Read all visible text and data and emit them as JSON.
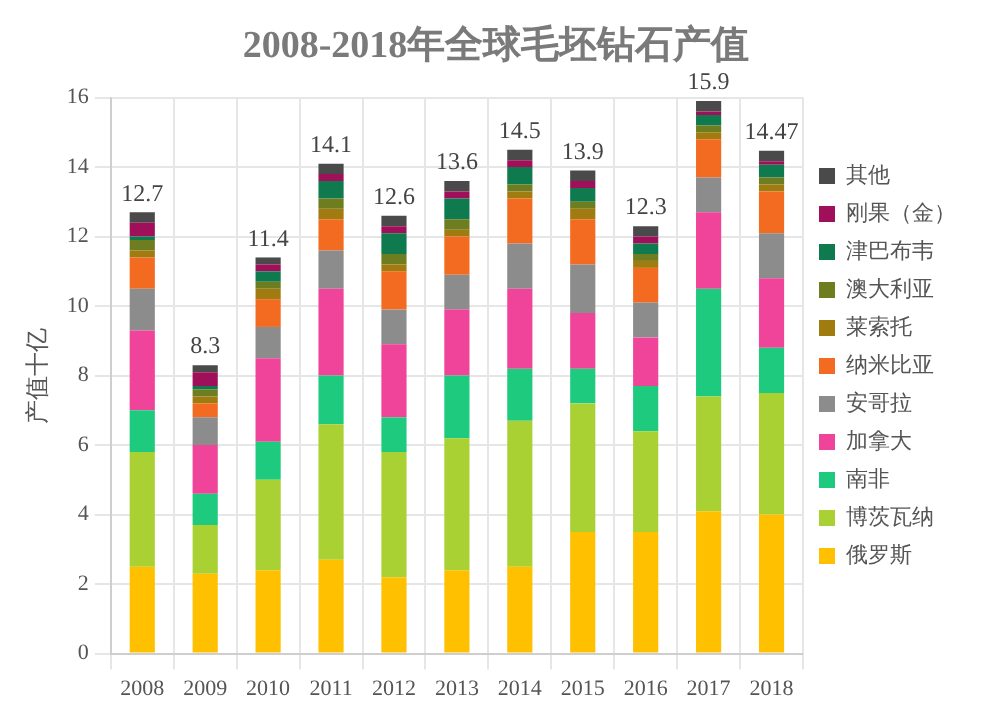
{
  "chart_data": {
    "type": "bar",
    "title": "2008-2018年全球毛坯钻石产值",
    "ylabel": "产值十亿",
    "stacked": true,
    "categories": [
      "2008",
      "2009",
      "2010",
      "2011",
      "2012",
      "2013",
      "2014",
      "2015",
      "2016",
      "2017",
      "2018"
    ],
    "series": [
      {
        "name": "俄罗斯",
        "color": "#ffc000",
        "values": [
          2.5,
          2.3,
          2.4,
          2.7,
          2.2,
          2.4,
          2.5,
          3.5,
          3.5,
          4.1,
          4.0
        ]
      },
      {
        "name": "博茨瓦纳",
        "color": "#a9d134",
        "values": [
          3.3,
          1.4,
          2.6,
          3.9,
          3.6,
          3.8,
          4.2,
          3.7,
          2.9,
          3.3,
          3.5
        ]
      },
      {
        "name": "南非",
        "color": "#1ecb7e",
        "values": [
          1.2,
          0.9,
          1.1,
          1.4,
          1.0,
          1.8,
          1.5,
          1.0,
          1.3,
          3.1,
          1.3
        ]
      },
      {
        "name": "加拿大",
        "color": "#f0439a",
        "values": [
          2.3,
          1.4,
          2.4,
          2.5,
          2.1,
          1.9,
          2.3,
          1.6,
          1.4,
          2.2,
          2.0
        ]
      },
      {
        "name": "安哥拉",
        "color": "#8c8c8c",
        "values": [
          1.2,
          0.8,
          0.9,
          1.1,
          1.0,
          1.0,
          1.3,
          1.4,
          1.0,
          1.0,
          1.3
        ]
      },
      {
        "name": "纳米比亚",
        "color": "#f26b21",
        "values": [
          0.9,
          0.4,
          0.8,
          0.9,
          1.1,
          1.1,
          1.3,
          1.3,
          1.0,
          1.1,
          1.2
        ]
      },
      {
        "name": "莱索托",
        "color": "#a07c10",
        "values": [
          0.2,
          0.2,
          0.3,
          0.3,
          0.2,
          0.2,
          0.2,
          0.3,
          0.2,
          0.2,
          0.2
        ]
      },
      {
        "name": "澳大利亚",
        "color": "#6e7d1f",
        "values": [
          0.3,
          0.2,
          0.2,
          0.3,
          0.3,
          0.3,
          0.2,
          0.2,
          0.2,
          0.2,
          0.2
        ]
      },
      {
        "name": "津巴布韦",
        "color": "#0e7a4e",
        "values": [
          0.1,
          0.1,
          0.3,
          0.5,
          0.6,
          0.6,
          0.5,
          0.4,
          0.3,
          0.3,
          0.37
        ]
      },
      {
        "name": "刚果（金）",
        "color": "#a0105a",
        "values": [
          0.4,
          0.4,
          0.2,
          0.2,
          0.2,
          0.2,
          0.2,
          0.2,
          0.2,
          0.1,
          0.1
        ]
      },
      {
        "name": "其他",
        "color": "#4a4a4a",
        "values": [
          0.3,
          0.2,
          0.2,
          0.3,
          0.3,
          0.3,
          0.3,
          0.3,
          0.3,
          0.3,
          0.3
        ]
      }
    ],
    "totals": [
      "12.7",
      "8.3",
      "11.4",
      "14.1",
      "12.6",
      "13.6",
      "14.5",
      "13.9",
      "12.3",
      "15.9",
      "14.47"
    ],
    "ylim": [
      0,
      16
    ],
    "yticks": [
      0,
      2,
      4,
      6,
      8,
      10,
      12,
      14,
      16
    ],
    "grid": true,
    "legend": "right"
  }
}
